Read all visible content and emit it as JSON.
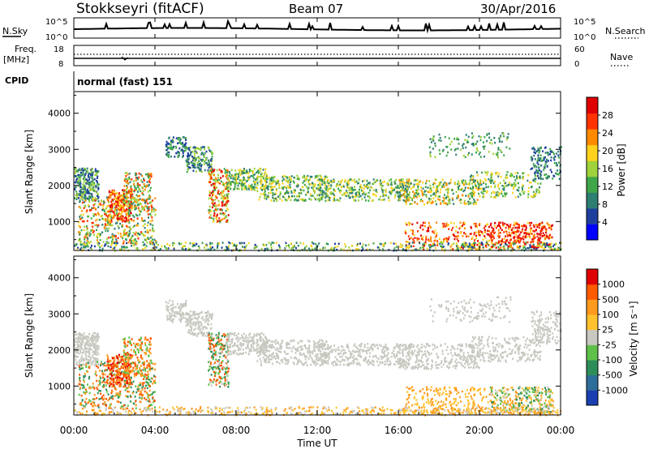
{
  "header": {
    "station": "Stokkseyri (fitACF)",
    "beam": "Beam 07",
    "date": "30/Apr/2016"
  },
  "strip_panels": {
    "nsky_label": "N.Sky",
    "nsky_ticks": [
      "10^5",
      "10^0"
    ],
    "nsearch_label": "N.Search",
    "nsearch_ticks": [
      "10^5",
      "10^0"
    ],
    "freq_label": "Freq.",
    "freq_unit": "[MHz]",
    "freq_ticks": [
      "18",
      "8"
    ],
    "nave_label": "Nave",
    "nave_ticks": [
      "60",
      "0"
    ],
    "cpid_label": "CPID",
    "cpid_value": "normal (fast) 151"
  },
  "chart_data": [
    {
      "type": "heatmap",
      "name": "power",
      "ylabel": "Slant Range [km]",
      "ylim": [
        200,
        4600
      ],
      "yticks": [
        "4000",
        "3000",
        "2000",
        "1000"
      ],
      "xlim_hours": [
        0,
        24
      ],
      "colorbar": {
        "label": "Power [dB]",
        "ticks": [
          "28",
          "24",
          "20",
          "16",
          "12",
          "8",
          "4"
        ],
        "colors": [
          "#0000ff",
          "#1f3f9f",
          "#2e7e72",
          "#3fa64a",
          "#9fd23c",
          "#ffd21e",
          "#ff8a00",
          "#ff3300",
          "#e00000"
        ]
      }
    },
    {
      "type": "heatmap",
      "name": "velocity",
      "ylabel": "Slant Range [km]",
      "ylim": [
        200,
        4600
      ],
      "yticks": [
        "4000",
        "3000",
        "2000",
        "1000"
      ],
      "xlim_hours": [
        0,
        24
      ],
      "colorbar": {
        "label": "Velocity [m s⁻¹]",
        "ticks": [
          "1000",
          "500",
          "100",
          "25",
          "-25",
          "-100",
          "-500",
          "-1000"
        ],
        "colors": [
          "#1a3fb0",
          "#2e6e9a",
          "#2e8e5a",
          "#5fc04a",
          "#c8c8c0",
          "#ffc22e",
          "#ff9a1e",
          "#ff5a00",
          "#e00000"
        ]
      }
    }
  ],
  "xaxis": {
    "label": "Time UT",
    "ticks": [
      "00:00",
      "04:00",
      "08:00",
      "12:00",
      "16:00",
      "20:00",
      "00:00"
    ]
  }
}
